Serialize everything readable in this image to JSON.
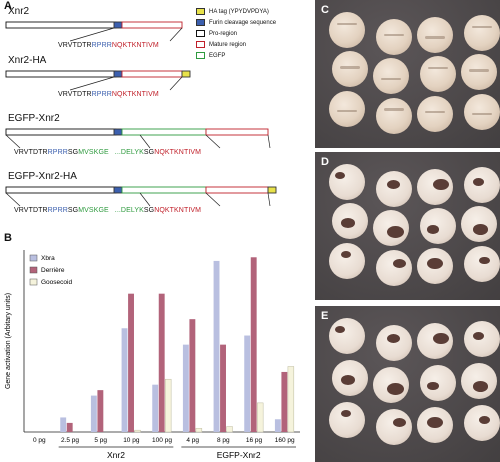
{
  "panels": {
    "a": "A",
    "b": "B",
    "c": "C",
    "d": "D",
    "e": "E"
  },
  "constructs": [
    {
      "name": "Xnr2",
      "seq": [
        {
          "t": "VRVTDTR",
          "c": "#111111"
        },
        {
          "t": "RPRR",
          "c": "#3b5fae"
        },
        {
          "t": "NQKTKNTIVM",
          "c": "#c0202a"
        }
      ],
      "tag": false,
      "egfp": false
    },
    {
      "name": "Xnr2-HA",
      "seq": [
        {
          "t": "VRVTDTR",
          "c": "#111111"
        },
        {
          "t": "RPRR",
          "c": "#3b5fae"
        },
        {
          "t": "NQKTKNTIVM",
          "c": "#c0202a"
        }
      ],
      "tag": true,
      "egfp": false
    },
    {
      "name": "EGFP-Xnr2",
      "seq": [
        {
          "t": "VRVTDTR",
          "c": "#111111"
        },
        {
          "t": "RPRR",
          "c": "#3b5fae"
        },
        {
          "t": "SG",
          "c": "#111111"
        },
        {
          "t": "MVSKGE",
          "c": "#2e9a3e"
        },
        {
          "t": "...DELYK",
          "c": "#2e9a3e"
        },
        {
          "t": "SG",
          "c": "#111111"
        },
        {
          "t": "NQKTKNTIVM",
          "c": "#c0202a"
        }
      ],
      "tag": false,
      "egfp": true
    },
    {
      "name": "EGFP-Xnr2-HA",
      "seq": [
        {
          "t": "VRVTDTR",
          "c": "#111111"
        },
        {
          "t": "RPRR",
          "c": "#3b5fae"
        },
        {
          "t": "SG",
          "c": "#111111"
        },
        {
          "t": "MVSKGE",
          "c": "#2e9a3e"
        },
        {
          "t": "...DELYK",
          "c": "#2e9a3e"
        },
        {
          "t": "SG",
          "c": "#111111"
        },
        {
          "t": "NQKTKNTIVM",
          "c": "#c0202a"
        }
      ],
      "tag": true,
      "egfp": true
    }
  ],
  "legend_a": [
    {
      "label": "HA tag (YPYDVPDYA)",
      "fill": "#e8e24a",
      "stroke": "#333333"
    },
    {
      "label": "Furin cleavage sequence",
      "fill": "#3b5fae",
      "stroke": "#333333"
    },
    {
      "label": "Pro-region",
      "fill": "#ffffff",
      "stroke": "#111111"
    },
    {
      "label": "Mature region",
      "fill": "#ffffff",
      "stroke": "#c0202a"
    },
    {
      "label": "EGFP",
      "fill": "#ffffff",
      "stroke": "#2e9a3e"
    }
  ],
  "chart_data": {
    "type": "bar",
    "ylabel": "Gene activation (Arbitary units)",
    "ylim": [
      0,
      100
    ],
    "categories": [
      "0 pg",
      "2.5 pg",
      "5 pg",
      "10 pg",
      "100 pg",
      "4 pg",
      "8 pg",
      "16 pg",
      "160 pg"
    ],
    "groups": [
      {
        "label": "Xnr2",
        "from": 1,
        "to": 4
      },
      {
        "label": "EGFP-Xnr2",
        "from": 5,
        "to": 8
      }
    ],
    "series": [
      {
        "name": "Xbra",
        "color": "#b9bfe0",
        "values": [
          0,
          8,
          20,
          57,
          26,
          48,
          94,
          53,
          7
        ]
      },
      {
        "name": "Derrière",
        "color": "#b2637a",
        "values": [
          0,
          5,
          23,
          76,
          76,
          62,
          48,
          96,
          33
        ]
      },
      {
        "name": "Goosecoid",
        "color": "#f5f3dc",
        "values": [
          0,
          0,
          0,
          1,
          29,
          2,
          3,
          16,
          36
        ]
      }
    ]
  },
  "embryo_rows": {
    "c": [
      [
        0,
        0,
        0,
        0
      ],
      [
        0,
        0,
        0,
        0
      ],
      [
        0,
        0,
        0,
        0
      ]
    ],
    "d": [
      [
        1,
        1,
        1,
        1
      ],
      [
        1,
        1,
        1,
        1
      ],
      [
        1,
        1,
        1,
        1
      ]
    ],
    "e": [
      [
        1,
        1,
        1,
        1
      ],
      [
        1,
        1,
        1,
        1
      ],
      [
        1,
        1,
        1,
        1
      ]
    ]
  }
}
